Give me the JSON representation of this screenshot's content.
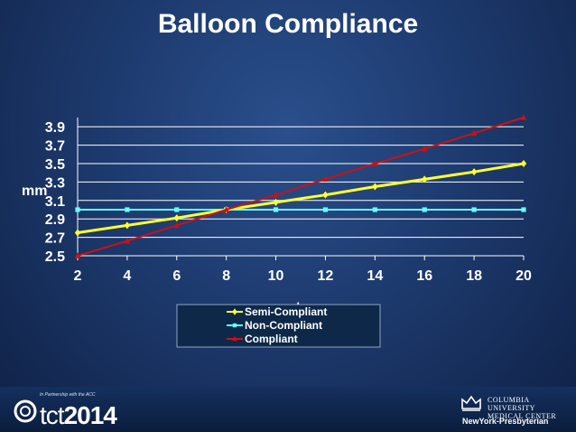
{
  "slide": {
    "title": "Balloon Compliance"
  },
  "chart_data": {
    "type": "line",
    "x": [
      2,
      4,
      6,
      8,
      10,
      12,
      14,
      16,
      18,
      20
    ],
    "xlabel": "atm",
    "ylabel": "mm",
    "xlim": [
      2,
      20
    ],
    "ylim": [
      2.5,
      3.9
    ],
    "x_ticks": [
      "2",
      "4",
      "6",
      "8",
      "10",
      "12",
      "14",
      "16",
      "18",
      "20"
    ],
    "y_ticks": [
      "2.5",
      "2.7",
      "2.9",
      "3.1",
      "3.3",
      "3.5",
      "3.7",
      "3.9"
    ],
    "grid": true,
    "legend_position": "bottom-center",
    "series": [
      {
        "name": "Semi-Compliant",
        "color": "#ffff33",
        "marker": "diamond",
        "values": [
          2.75,
          2.83,
          2.91,
          3.0,
          3.08,
          3.16,
          3.25,
          3.33,
          3.41,
          3.5
        ]
      },
      {
        "name": "Non-Compliant",
        "color": "#66ffff",
        "marker": "square",
        "values": [
          3.0,
          3.0,
          3.0,
          3.0,
          3.0,
          3.0,
          3.0,
          3.0,
          3.0,
          3.0
        ]
      },
      {
        "name": "Compliant",
        "color": "#cc1111",
        "marker": "triangle",
        "values": [
          2.5,
          2.66,
          2.83,
          3.0,
          3.16,
          3.33,
          3.5,
          3.66,
          3.83,
          4.0
        ]
      }
    ]
  },
  "footer": {
    "tct_partner": "In Partnership with the ACC",
    "tct_brand": "tct",
    "tct_year": "2014",
    "cu_line1": "COLUMBIA UNIVERSITY",
    "cu_line2": "MEDICAL CENTER",
    "nyp": "NewYork-Presbyterian"
  }
}
